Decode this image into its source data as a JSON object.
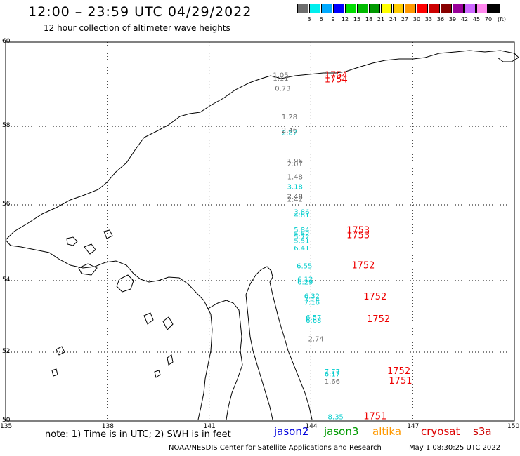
{
  "header": {
    "title": "12:00 – 23:59 UTC 04/29/2022",
    "subtitle": "12 hour collection of altimeter wave heights"
  },
  "colorbar": {
    "colors": [
      "#6e6e6e",
      "#00eeee",
      "#00aaff",
      "#0000ff",
      "#00dd00",
      "#00bb00",
      "#009900",
      "#ffff00",
      "#ffcc00",
      "#ff9900",
      "#ff0000",
      "#cc0000",
      "#880000",
      "#990099",
      "#cc66ff",
      "#ff88ee",
      "#000000"
    ],
    "labels": [
      "3",
      "6",
      "9",
      "12",
      "15",
      "18",
      "21",
      "24",
      "27",
      "30",
      "33",
      "36",
      "39",
      "42",
      "45",
      "70"
    ],
    "unit": "(ft)"
  },
  "axes": {
    "lat_labels": [
      "60",
      "58",
      "56",
      "54",
      "52",
      "50"
    ],
    "lon_labels": [
      "135",
      "138",
      "141",
      "144",
      "147",
      "150"
    ]
  },
  "swh_points": [
    {
      "lon": 142.88,
      "lat": 59.16,
      "value": "1.05",
      "color": "#707070"
    },
    {
      "lon": 142.88,
      "lat": 59.08,
      "value": "1.11",
      "color": "#707070"
    },
    {
      "lon": 142.94,
      "lat": 58.84,
      "value": "0.73",
      "color": "#707070"
    },
    {
      "lon": 143.14,
      "lat": 58.17,
      "value": "1.28",
      "color": "#707070"
    },
    {
      "lon": 143.14,
      "lat": 57.84,
      "value": "2.46",
      "color": "#555555"
    },
    {
      "lon": 143.14,
      "lat": 57.78,
      "value": "2.87",
      "color": "#33cccc"
    },
    {
      "lon": 143.3,
      "lat": 57.05,
      "value": "1.96",
      "color": "#707070"
    },
    {
      "lon": 143.3,
      "lat": 56.98,
      "value": "2.01",
      "color": "#707070"
    },
    {
      "lon": 143.3,
      "lat": 56.65,
      "value": "1.48",
      "color": "#707070"
    },
    {
      "lon": 143.3,
      "lat": 56.4,
      "value": "3.18",
      "color": "#00cccc"
    },
    {
      "lon": 143.3,
      "lat": 56.15,
      "value": "2.48",
      "color": "#555555"
    },
    {
      "lon": 143.3,
      "lat": 56.08,
      "value": "2.42",
      "color": "#707070"
    },
    {
      "lon": 143.5,
      "lat": 55.75,
      "value": "3.86",
      "color": "#00cccc"
    },
    {
      "lon": 143.5,
      "lat": 55.67,
      "value": "4.81",
      "color": "#00cccc"
    },
    {
      "lon": 143.5,
      "lat": 55.28,
      "value": "5.84",
      "color": "#00cccc"
    },
    {
      "lon": 143.5,
      "lat": 55.18,
      "value": "5.52",
      "color": "#00cccc"
    },
    {
      "lon": 143.5,
      "lat": 55.09,
      "value": "5.72",
      "color": "#00cccc"
    },
    {
      "lon": 143.5,
      "lat": 54.99,
      "value": "5.51",
      "color": "#00cccc"
    },
    {
      "lon": 143.5,
      "lat": 54.8,
      "value": "6.41",
      "color": "#00cccc"
    },
    {
      "lon": 143.58,
      "lat": 54.32,
      "value": "6.55",
      "color": "#00cccc"
    },
    {
      "lon": 143.6,
      "lat": 53.97,
      "value": "6.12",
      "color": "#00cccc"
    },
    {
      "lon": 143.6,
      "lat": 53.89,
      "value": "6.29",
      "color": "#00cccc"
    },
    {
      "lon": 143.8,
      "lat": 53.5,
      "value": "6.32",
      "color": "#00cccc"
    },
    {
      "lon": 143.8,
      "lat": 53.4,
      "value": "7.14",
      "color": "#00cccc"
    },
    {
      "lon": 143.8,
      "lat": 53.32,
      "value": "7.16",
      "color": "#00cccc"
    },
    {
      "lon": 143.85,
      "lat": 52.9,
      "value": "6.57",
      "color": "#00cccc"
    },
    {
      "lon": 143.85,
      "lat": 52.82,
      "value": "6.68",
      "color": "#00cccc"
    },
    {
      "lon": 143.92,
      "lat": 52.3,
      "value": "2.74",
      "color": "#707070"
    },
    {
      "lon": 144.4,
      "lat": 51.37,
      "value": "7.77",
      "color": "#00cccc"
    },
    {
      "lon": 144.4,
      "lat": 51.3,
      "value": "6.17",
      "color": "#00cccc"
    },
    {
      "lon": 144.4,
      "lat": 51.08,
      "value": "1.66",
      "color": "#707070"
    },
    {
      "lon": 144.5,
      "lat": 50.05,
      "value": "8.35",
      "color": "#00cccc"
    }
  ],
  "time_labels": [
    {
      "lon": 144.4,
      "lat": 59.14,
      "value": "1754"
    },
    {
      "lon": 144.4,
      "lat": 59.04,
      "value": "1754"
    },
    {
      "lon": 145.05,
      "lat": 55.25,
      "value": "1753"
    },
    {
      "lon": 145.05,
      "lat": 55.12,
      "value": "1753"
    },
    {
      "lon": 145.2,
      "lat": 54.32,
      "value": "1752"
    },
    {
      "lon": 145.55,
      "lat": 53.47,
      "value": "1752"
    },
    {
      "lon": 145.65,
      "lat": 52.84,
      "value": "1752"
    },
    {
      "lon": 146.25,
      "lat": 51.37,
      "value": "1752"
    },
    {
      "lon": 146.3,
      "lat": 51.08,
      "value": "1751"
    },
    {
      "lon": 145.55,
      "lat": 50.05,
      "value": "1751"
    }
  ],
  "footer": {
    "note": "note:  1) Time is in UTC;  2) SWH is in feet",
    "satellites": [
      {
        "name": "jason2",
        "color": "#0000dd"
      },
      {
        "name": "jason3",
        "color": "#009900"
      },
      {
        "name": "altika",
        "color": "#ff9900"
      },
      {
        "name": "cryosat",
        "color": "#dd0000"
      },
      {
        "name": "s3a",
        "color": "#cc0000"
      }
    ],
    "credit": "NOAA/NESDIS Center for Satellite Applications and Research",
    "timestamp": "May  1 08:30:25 UTC 2022"
  }
}
